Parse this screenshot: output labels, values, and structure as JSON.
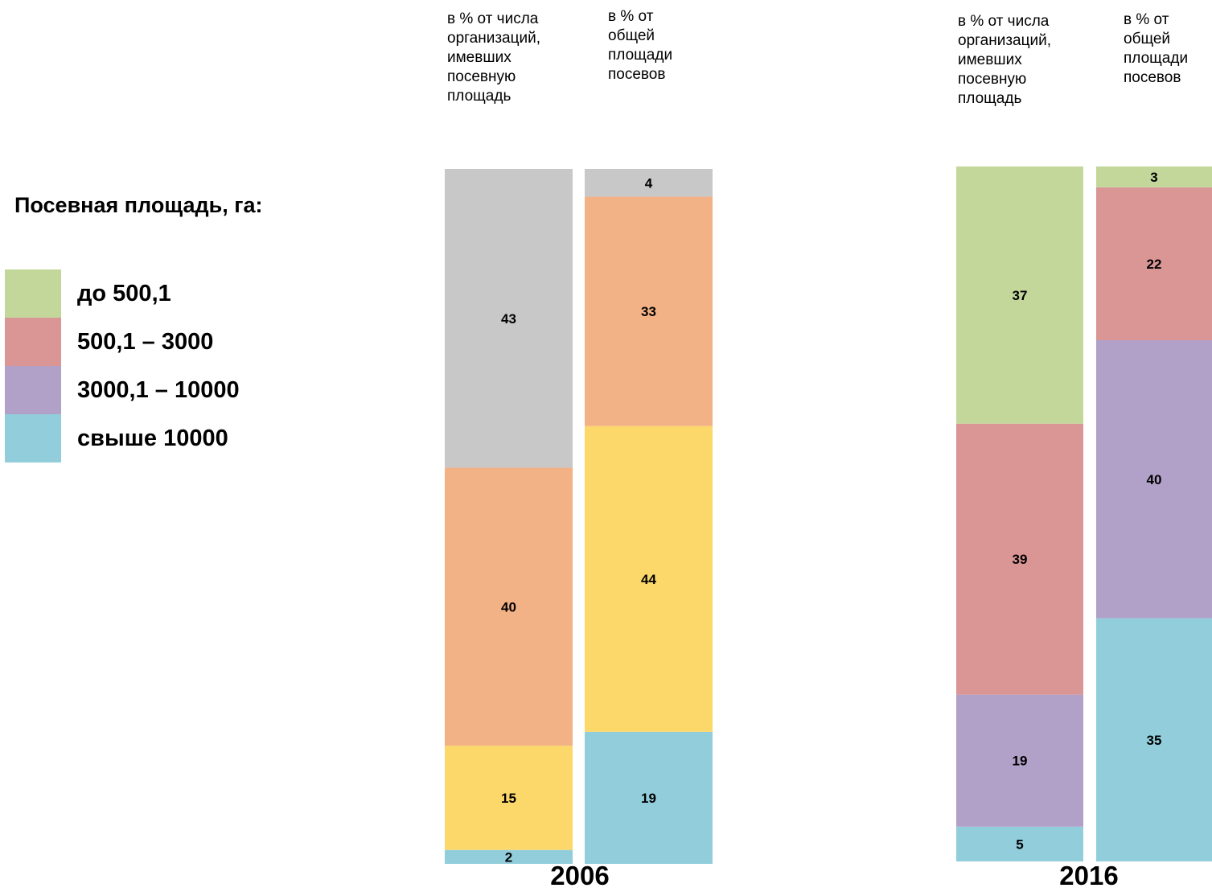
{
  "legend": {
    "title": "Посевная площадь, га:",
    "items": [
      {
        "label": "до 500,1",
        "color": "#c4d79b"
      },
      {
        "label": "500,1 – 3000",
        "color": "#da9694"
      },
      {
        "label": "3000,1 – 10000",
        "color": "#b1a0c7"
      },
      {
        "label": "свыше 10000",
        "color": "#92cddc"
      }
    ]
  },
  "headers": {
    "orgs": "в % от числа\nорганизаций,\nимевших\nпосевную\nплощадь",
    "area": "в % от\nобщей\nплощади\nпосевов"
  },
  "chart_data": {
    "type": "bar",
    "stacked": true,
    "panels": [
      {
        "year": "2006",
        "bars": [
          {
            "header": "в % от числа организаций, имевших посевную площадь",
            "segments": [
              {
                "value": 2,
                "color": "#92cddc"
              },
              {
                "value": 15,
                "color": "#fcd76a"
              },
              {
                "value": 40,
                "color": "#f3b186"
              },
              {
                "value": 43,
                "color": "#c8c8c8"
              }
            ]
          },
          {
            "header": "в % от общей площади посевов",
            "segments": [
              {
                "value": 19,
                "color": "#92cddc"
              },
              {
                "value": 44,
                "color": "#fcd76a"
              },
              {
                "value": 33,
                "color": "#f3b186"
              },
              {
                "value": 4,
                "color": "#c8c8c8"
              }
            ]
          }
        ]
      },
      {
        "year": "2016",
        "bars": [
          {
            "header": "в % от числа организаций, имевших посевную площадь",
            "segments": [
              {
                "value": 5,
                "color": "#92cddc"
              },
              {
                "value": 19,
                "color": "#b1a0c7"
              },
              {
                "value": 39,
                "color": "#da9694"
              },
              {
                "value": 37,
                "color": "#c4d79b"
              }
            ]
          },
          {
            "header": "в % от общей площади посевов",
            "segments": [
              {
                "value": 35,
                "color": "#92cddc"
              },
              {
                "value": 40,
                "color": "#b1a0c7"
              },
              {
                "value": 22,
                "color": "#da9694"
              },
              {
                "value": 3,
                "color": "#c4d79b"
              }
            ]
          }
        ]
      }
    ]
  }
}
